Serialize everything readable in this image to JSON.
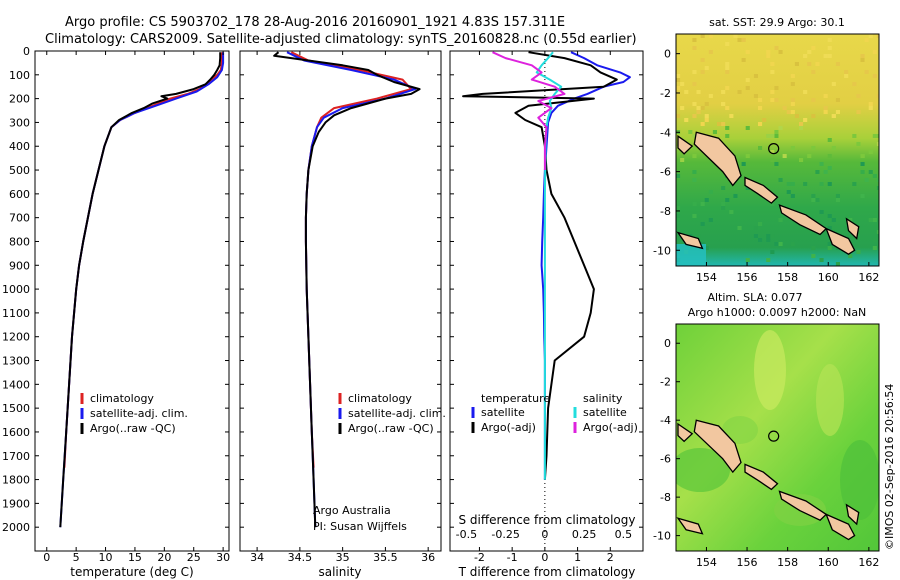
{
  "header": {
    "line1": "Argo profile: CS 5903702_178 28-Aug-2016 20160901_1921 4.83S 157.311E",
    "line2": "Climatology: CARS2009. Satellite-adjusted climatology: synTS_20160828.nc (0.55d earlier)"
  },
  "side_text": "©IMOS 02-Sep-2016 20:56:54",
  "colors": {
    "climatology": "#dd2222",
    "satellite_adj": "#1a1aee",
    "argo": "#000000",
    "salinity_satellite": "#22dddd",
    "salinity_argo": "#dd22dd"
  },
  "chart_data": [
    {
      "type": "line",
      "panel": "temperature",
      "xlabel": "temperature (deg C)",
      "x_ticks": [
        0,
        5,
        10,
        15,
        20,
        25,
        30
      ],
      "xlim": [
        -2,
        31
      ],
      "ylim": [
        0,
        2100
      ],
      "y_ticks": [
        0,
        100,
        200,
        300,
        400,
        500,
        600,
        700,
        800,
        900,
        1000,
        1100,
        1200,
        1300,
        1400,
        1500,
        1600,
        1700,
        1800,
        1900,
        2000
      ],
      "y_inverted": true,
      "legend": [
        "climatology",
        "satellite-adj. clim.",
        "Argo(..raw -QC)"
      ],
      "series": [
        {
          "name": "climatology",
          "color": "#dd2222",
          "depth": [
            5,
            50,
            80,
            100,
            130,
            160,
            180,
            200,
            230,
            260,
            290,
            320,
            400,
            500,
            600,
            700,
            800,
            900,
            1000,
            1200,
            1400,
            1600,
            1750
          ],
          "values": [
            29.8,
            29.8,
            29.6,
            29.0,
            27.5,
            26.0,
            24.0,
            21.0,
            18.0,
            15.0,
            12.5,
            11.0,
            9.8,
            8.8,
            7.8,
            7.0,
            6.2,
            5.5,
            5.0,
            4.3,
            3.8,
            3.3,
            3.0
          ]
        },
        {
          "name": "satellite-adj. clim.",
          "color": "#1a1aee",
          "depth": [
            5,
            50,
            80,
            110,
            140,
            170,
            200,
            230,
            260,
            290,
            320,
            400,
            500,
            600,
            700,
            800,
            900,
            1000,
            1200,
            1400,
            1600,
            1800,
            2000
          ],
          "values": [
            30.0,
            30.0,
            29.8,
            29.0,
            27.5,
            25.5,
            22.0,
            18.5,
            15.0,
            12.5,
            11.0,
            9.8,
            8.8,
            7.8,
            7.0,
            6.2,
            5.5,
            5.0,
            4.3,
            3.8,
            3.3,
            2.8,
            2.3
          ]
        },
        {
          "name": "Argo(..raw -QC)",
          "color": "#000000",
          "depth": [
            5,
            30,
            60,
            80,
            100,
            120,
            140,
            160,
            180,
            190,
            200,
            220,
            240,
            260,
            290,
            320,
            400,
            500,
            600,
            700,
            800,
            900,
            1000,
            1200,
            1400,
            1600,
            1800,
            2000
          ],
          "values": [
            29.5,
            29.5,
            29.4,
            29.0,
            28.5,
            27.8,
            27.0,
            25.0,
            22.0,
            19.5,
            20.5,
            18.0,
            16.5,
            14.5,
            12.3,
            11.0,
            9.8,
            8.8,
            7.8,
            7.0,
            6.2,
            5.5,
            5.0,
            4.3,
            3.8,
            3.3,
            2.8,
            2.3
          ]
        }
      ]
    },
    {
      "type": "line",
      "panel": "salinity",
      "xlabel": "salinity",
      "x_ticks": [
        34,
        34.5,
        35,
        35.5,
        36
      ],
      "xlim": [
        33.8,
        36.15
      ],
      "ylim": [
        0,
        2100
      ],
      "y_inverted": true,
      "legend": [
        "climatology",
        "satellite-adj. clim.",
        "Argo(..raw -QC)"
      ],
      "annotations": [
        "Argo Australia",
        "PI: Susan Wijffels"
      ],
      "series": [
        {
          "name": "climatology",
          "color": "#dd2222",
          "depth": [
            5,
            40,
            80,
            120,
            160,
            200,
            240,
            280,
            320,
            400,
            500,
            600,
            700,
            800,
            1000,
            1200,
            1400,
            1600,
            1750
          ],
          "values": [
            34.4,
            34.6,
            35.2,
            35.7,
            35.8,
            35.4,
            34.9,
            34.75,
            34.7,
            34.64,
            34.6,
            34.58,
            34.57,
            34.57,
            34.58,
            34.6,
            34.62,
            34.64,
            34.66
          ]
        },
        {
          "name": "satellite-adj. clim.",
          "color": "#1a1aee",
          "depth": [
            5,
            40,
            80,
            120,
            160,
            200,
            240,
            280,
            320,
            400,
            500,
            600,
            700,
            800,
            1000,
            1200,
            1400,
            1600,
            1800,
            2000
          ],
          "values": [
            34.35,
            34.55,
            35.1,
            35.6,
            35.85,
            35.5,
            35.0,
            34.78,
            34.7,
            34.64,
            34.6,
            34.58,
            34.57,
            34.57,
            34.58,
            34.6,
            34.62,
            34.64,
            34.66,
            34.68
          ]
        },
        {
          "name": "Argo(..raw -QC)",
          "color": "#000000",
          "depth": [
            5,
            20,
            40,
            60,
            80,
            100,
            130,
            160,
            180,
            200,
            220,
            240,
            270,
            300,
            340,
            400,
            500,
            600,
            700,
            800,
            1000,
            1200,
            1400,
            1600,
            1800,
            2000
          ],
          "values": [
            34.25,
            34.2,
            34.6,
            35.0,
            35.3,
            35.4,
            35.6,
            35.9,
            35.8,
            35.5,
            35.3,
            35.1,
            34.9,
            34.8,
            34.72,
            34.65,
            34.6,
            34.58,
            34.57,
            34.57,
            34.58,
            34.6,
            34.62,
            34.64,
            34.66,
            34.68
          ]
        }
      ]
    },
    {
      "type": "line",
      "panel": "difference",
      "xlabel": "T difference from climatology",
      "xlabel_top": "S difference from climatology",
      "x_ticks_T": [
        -2,
        -1,
        0,
        1,
        2
      ],
      "x_ticks_S": [
        -0.5,
        -0.25,
        0,
        0.25,
        0.5
      ],
      "xlim": [
        -2.9,
        3.0
      ],
      "ylim": [
        0,
        2100
      ],
      "y_inverted": true,
      "legend": [
        {
          "group": "temperature",
          "items": [
            "satellite",
            "Argo(-adj)"
          ]
        },
        {
          "group": "salinity",
          "items": [
            "satellite",
            "Argo(-adj)"
          ]
        }
      ],
      "series": [
        {
          "name": "temperature satellite",
          "color": "#1a1aee",
          "depth": [
            5,
            30,
            60,
            90,
            110,
            130,
            150,
            180,
            200,
            230,
            260,
            300,
            400,
            500,
            600,
            700,
            800,
            900,
            1000,
            1100,
            1200,
            1300,
            1500,
            1700,
            1800
          ],
          "values": [
            0.8,
            1.2,
            1.6,
            2.3,
            2.6,
            2.4,
            1.8,
            1.3,
            0.9,
            0.4,
            0.2,
            0.1,
            0.05,
            0.0,
            -0.03,
            -0.05,
            -0.08,
            -0.1,
            -0.05,
            -0.03,
            -0.02,
            0.0,
            0.0,
            0.0,
            0.0
          ]
        },
        {
          "name": "temperature Argo(-adj)",
          "color": "#000000",
          "depth": [
            5,
            30,
            60,
            90,
            120,
            150,
            180,
            190,
            200,
            230,
            260,
            290,
            320,
            400,
            500,
            600,
            700,
            800,
            900,
            1000,
            1100,
            1200,
            1300,
            1500,
            1700,
            1800
          ],
          "values": [
            -0.5,
            0.6,
            1.4,
            1.7,
            2.2,
            1.8,
            -1.9,
            -2.5,
            1.5,
            -0.5,
            -0.9,
            -0.6,
            -0.1,
            0.0,
            0.05,
            0.2,
            0.6,
            0.9,
            1.2,
            1.5,
            1.4,
            1.2,
            0.3,
            0.1,
            0.05,
            0.0
          ]
        },
        {
          "name": "salinity satellite",
          "color": "#22dddd",
          "depth": [
            5,
            30,
            60,
            90,
            120,
            150,
            180,
            210,
            240,
            280,
            320,
            400,
            600,
            800,
            1000,
            1200,
            1400,
            1600,
            1800
          ],
          "values": [
            0.25,
            0.1,
            -0.1,
            -0.25,
            0.15,
            0.5,
            0.3,
            0.15,
            0.2,
            0.1,
            0.05,
            0.02,
            0.0,
            0.0,
            0.0,
            0.0,
            0.0,
            0.0,
            0.0
          ]
        },
        {
          "name": "salinity Argo(-adj)",
          "color": "#dd22dd",
          "depth": [
            5,
            30,
            60,
            90,
            120,
            150,
            180,
            210,
            240,
            280,
            320,
            400,
            500
          ],
          "values": [
            -1.6,
            -1.2,
            -0.4,
            -0.1,
            -0.4,
            0.3,
            0.6,
            -0.2,
            0.2,
            -0.2,
            0.05,
            0.0,
            0.0
          ]
        }
      ]
    },
    {
      "type": "heatmap",
      "panel": "map_sst",
      "title": "sat. SST: 29.9 Argo: 30.1",
      "x_ticks": [
        154,
        156,
        158,
        160,
        162
      ],
      "y_ticks": [
        0,
        -2,
        -4,
        -6,
        -8,
        -10
      ],
      "xlim": [
        152.5,
        162.5
      ],
      "ylim": [
        -10.8,
        1.0
      ],
      "marker": {
        "lon": 157.311,
        "lat": -4.83
      }
    },
    {
      "type": "heatmap",
      "panel": "map_sla",
      "title_line1": "Altim. SLA: 0.077",
      "title_line2": "Argo h1000: 0.0097 h2000: NaN",
      "x_ticks": [
        154,
        156,
        158,
        160,
        162
      ],
      "y_ticks": [
        0,
        -2,
        -4,
        -6,
        -8,
        -10
      ],
      "xlim": [
        152.5,
        162.5
      ],
      "ylim": [
        -10.8,
        1.0
      ],
      "marker": {
        "lon": 157.311,
        "lat": -4.83
      }
    }
  ]
}
